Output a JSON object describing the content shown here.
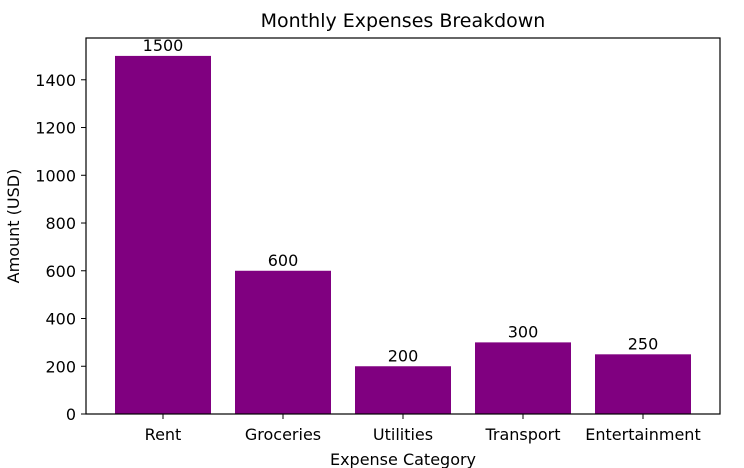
{
  "chart_data": {
    "type": "bar",
    "title": "Monthly Expenses Breakdown",
    "xlabel": "Expense Category",
    "ylabel": "Amount (USD)",
    "categories": [
      "Rent",
      "Groceries",
      "Utilities",
      "Transport",
      "Entertainment"
    ],
    "values": [
      1500,
      600,
      200,
      300,
      250
    ],
    "data_labels": [
      "1500",
      "600",
      "200",
      "300",
      "250"
    ],
    "ylim": [
      0,
      1575
    ],
    "yticks": [
      0,
      200,
      400,
      600,
      800,
      1000,
      1200,
      1400
    ],
    "ytick_labels": [
      "0",
      "200",
      "400",
      "600",
      "800",
      "1000",
      "1200",
      "1400"
    ],
    "bar_color": "#800080",
    "grid": false,
    "legend": "none"
  }
}
